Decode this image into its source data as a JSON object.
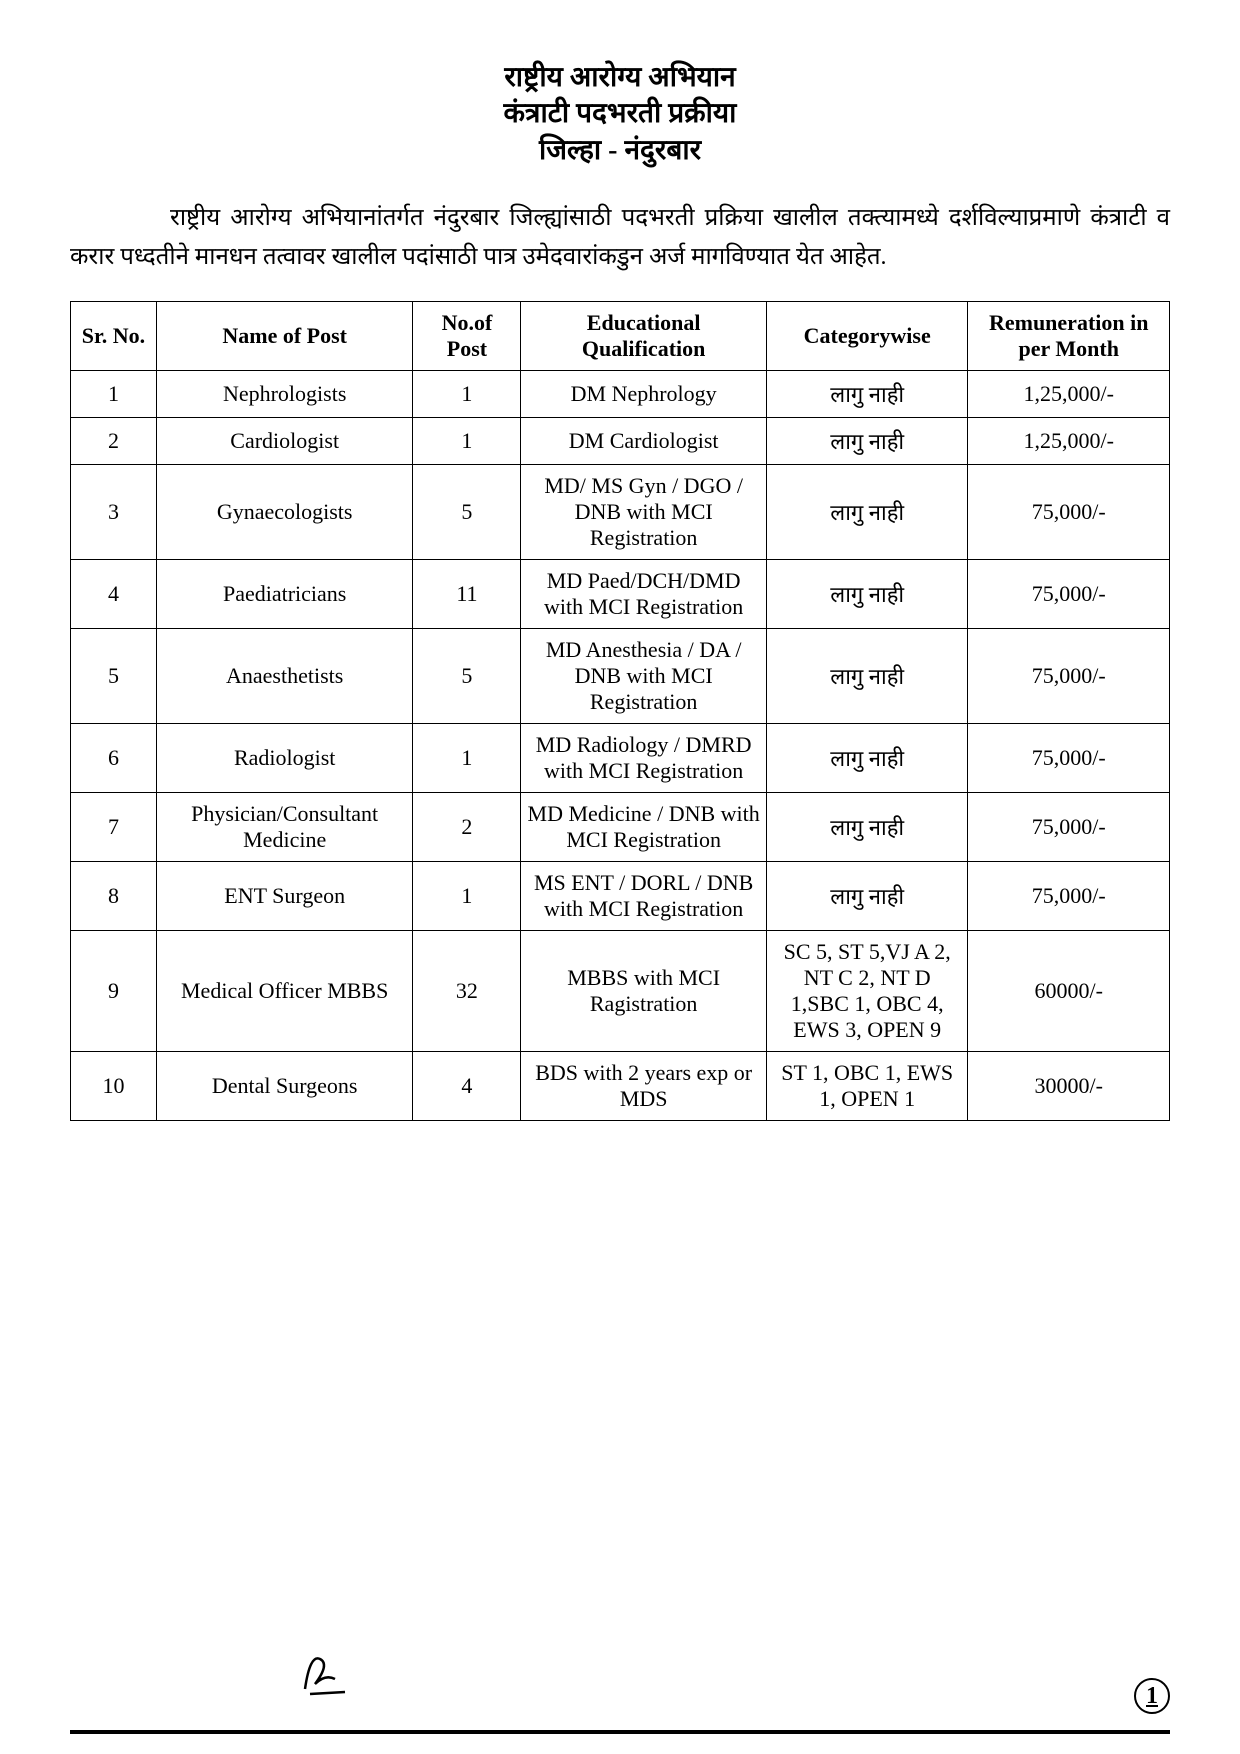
{
  "header": {
    "line1": "राष्ट्रीय आरोग्य अभियान",
    "line2": "कंत्राटी पदभरती प्रक्रीया",
    "line3": "जिल्हा - नंदुरबार"
  },
  "intro": "राष्ट्रीय आरोग्य अभियानांतर्गत नंदुरबार जिल्ह्यांसाठी पदभरती प्रक्रिया खालील तक्त्यामध्ये दर्शविल्याप्रमाणे कंत्राटी व करार पध्दतीने मानधन तत्वावर खालील पदांसाठी पात्र उमेदवारांकडुन अर्ज मागविण्यात येत आहेत.",
  "table": {
    "headers": {
      "sr": "Sr. No.",
      "name": "Name of Post",
      "post": "No.of Post",
      "edu": "Educational Qualification",
      "cat": "Categorywise",
      "rem": "Remuneration in per Month"
    },
    "rows": [
      {
        "sr": "1",
        "name": "Nephrologists",
        "post": "1",
        "edu": "DM Nephrology",
        "cat": "लागु नाही",
        "rem": "1,25,000/-"
      },
      {
        "sr": "2",
        "name": "Cardiologist",
        "post": "1",
        "edu": "DM Cardiologist",
        "cat": "लागु नाही",
        "rem": "1,25,000/-"
      },
      {
        "sr": "3",
        "name": "Gynaecologists",
        "post": "5",
        "edu": "MD/ MS Gyn / DGO / DNB with MCI Registration",
        "cat": "लागु नाही",
        "rem": "75,000/-"
      },
      {
        "sr": "4",
        "name": "Paediatricians",
        "post": "11",
        "edu": "MD Paed/DCH/DMD with MCI Registration",
        "cat": "लागु नाही",
        "rem": "75,000/-"
      },
      {
        "sr": "5",
        "name": "Anaesthetists",
        "post": "5",
        "edu": "MD Anesthesia / DA / DNB with MCI Registration",
        "cat": "लागु नाही",
        "rem": "75,000/-"
      },
      {
        "sr": "6",
        "name": "Radiologist",
        "post": "1",
        "edu": "MD Radiology / DMRD with MCI Registration",
        "cat": "लागु नाही",
        "rem": "75,000/-"
      },
      {
        "sr": "7",
        "name": "Physician/Consultant Medicine",
        "post": "2",
        "edu": "MD Medicine / DNB with MCI Registration",
        "cat": "लागु नाही",
        "rem": "75,000/-"
      },
      {
        "sr": "8",
        "name": "ENT Surgeon",
        "post": "1",
        "edu": "MS ENT / DORL / DNB with MCI Registration",
        "cat": "लागु नाही",
        "rem": "75,000/-"
      },
      {
        "sr": "9",
        "name": "Medical Officer MBBS",
        "post": "32",
        "edu": "MBBS with MCI Ragistration",
        "cat": "SC 5, ST 5,VJ A 2, NT C 2, NT D 1,SBC 1, OBC 4, EWS 3, OPEN 9",
        "rem": "60000/-"
      },
      {
        "sr": "10",
        "name": "Dental Surgeons",
        "post": "4",
        "edu": "BDS with 2 years exp or MDS",
        "cat": "ST 1, OBC 1, EWS 1, OPEN 1",
        "rem": "30000/-"
      }
    ]
  },
  "footer": {
    "page": "1"
  }
}
